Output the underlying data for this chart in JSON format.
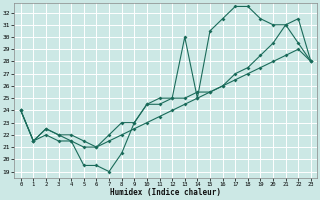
{
  "bg_color": "#cce8e5",
  "grid_color": "#aed4d0",
  "line_color": "#1a6b5a",
  "xlabel": "Humidex (Indice chaleur)",
  "xticks": [
    0,
    1,
    2,
    3,
    4,
    5,
    6,
    7,
    8,
    9,
    10,
    11,
    12,
    13,
    14,
    15,
    16,
    17,
    18,
    19,
    20,
    21,
    22,
    23
  ],
  "yticks": [
    19,
    20,
    21,
    22,
    23,
    24,
    25,
    26,
    27,
    28,
    29,
    30,
    31,
    32
  ],
  "xlim": [
    -0.5,
    23.5
  ],
  "ylim": [
    18.5,
    32.8
  ],
  "line1_x": [
    0,
    1,
    2,
    3,
    4,
    5,
    6,
    7,
    8,
    9,
    10,
    11,
    12,
    13,
    14,
    15,
    16,
    17,
    18,
    19,
    20,
    21,
    22,
    23
  ],
  "line1_y": [
    24.0,
    21.5,
    22.5,
    22.0,
    21.5,
    19.5,
    19.5,
    19.0,
    20.5,
    23.0,
    24.5,
    24.5,
    25.0,
    30.0,
    25.0,
    30.5,
    31.5,
    32.5,
    32.5,
    31.5,
    31.0,
    31.0,
    29.5,
    28.0
  ],
  "line2_x": [
    0,
    1,
    2,
    3,
    4,
    5,
    6,
    7,
    8,
    9,
    10,
    11,
    12,
    13,
    14,
    15,
    16,
    17,
    18,
    19,
    20,
    21,
    22,
    23
  ],
  "line2_y": [
    24.0,
    21.5,
    22.5,
    22.0,
    22.0,
    21.5,
    21.0,
    22.0,
    23.0,
    23.0,
    24.5,
    25.0,
    25.0,
    25.0,
    25.5,
    25.5,
    26.0,
    27.0,
    27.5,
    28.5,
    29.5,
    31.0,
    31.5,
    28.0
  ],
  "line3_x": [
    0,
    1,
    2,
    3,
    4,
    5,
    6,
    7,
    8,
    9,
    10,
    11,
    12,
    13,
    14,
    15,
    16,
    17,
    18,
    19,
    20,
    21,
    22,
    23
  ],
  "line3_y": [
    24.0,
    21.5,
    22.0,
    21.5,
    21.5,
    21.0,
    21.0,
    21.5,
    22.0,
    22.5,
    23.0,
    23.5,
    24.0,
    24.5,
    25.0,
    25.5,
    26.0,
    26.5,
    27.0,
    27.5,
    28.0,
    28.5,
    29.0,
    28.0
  ]
}
